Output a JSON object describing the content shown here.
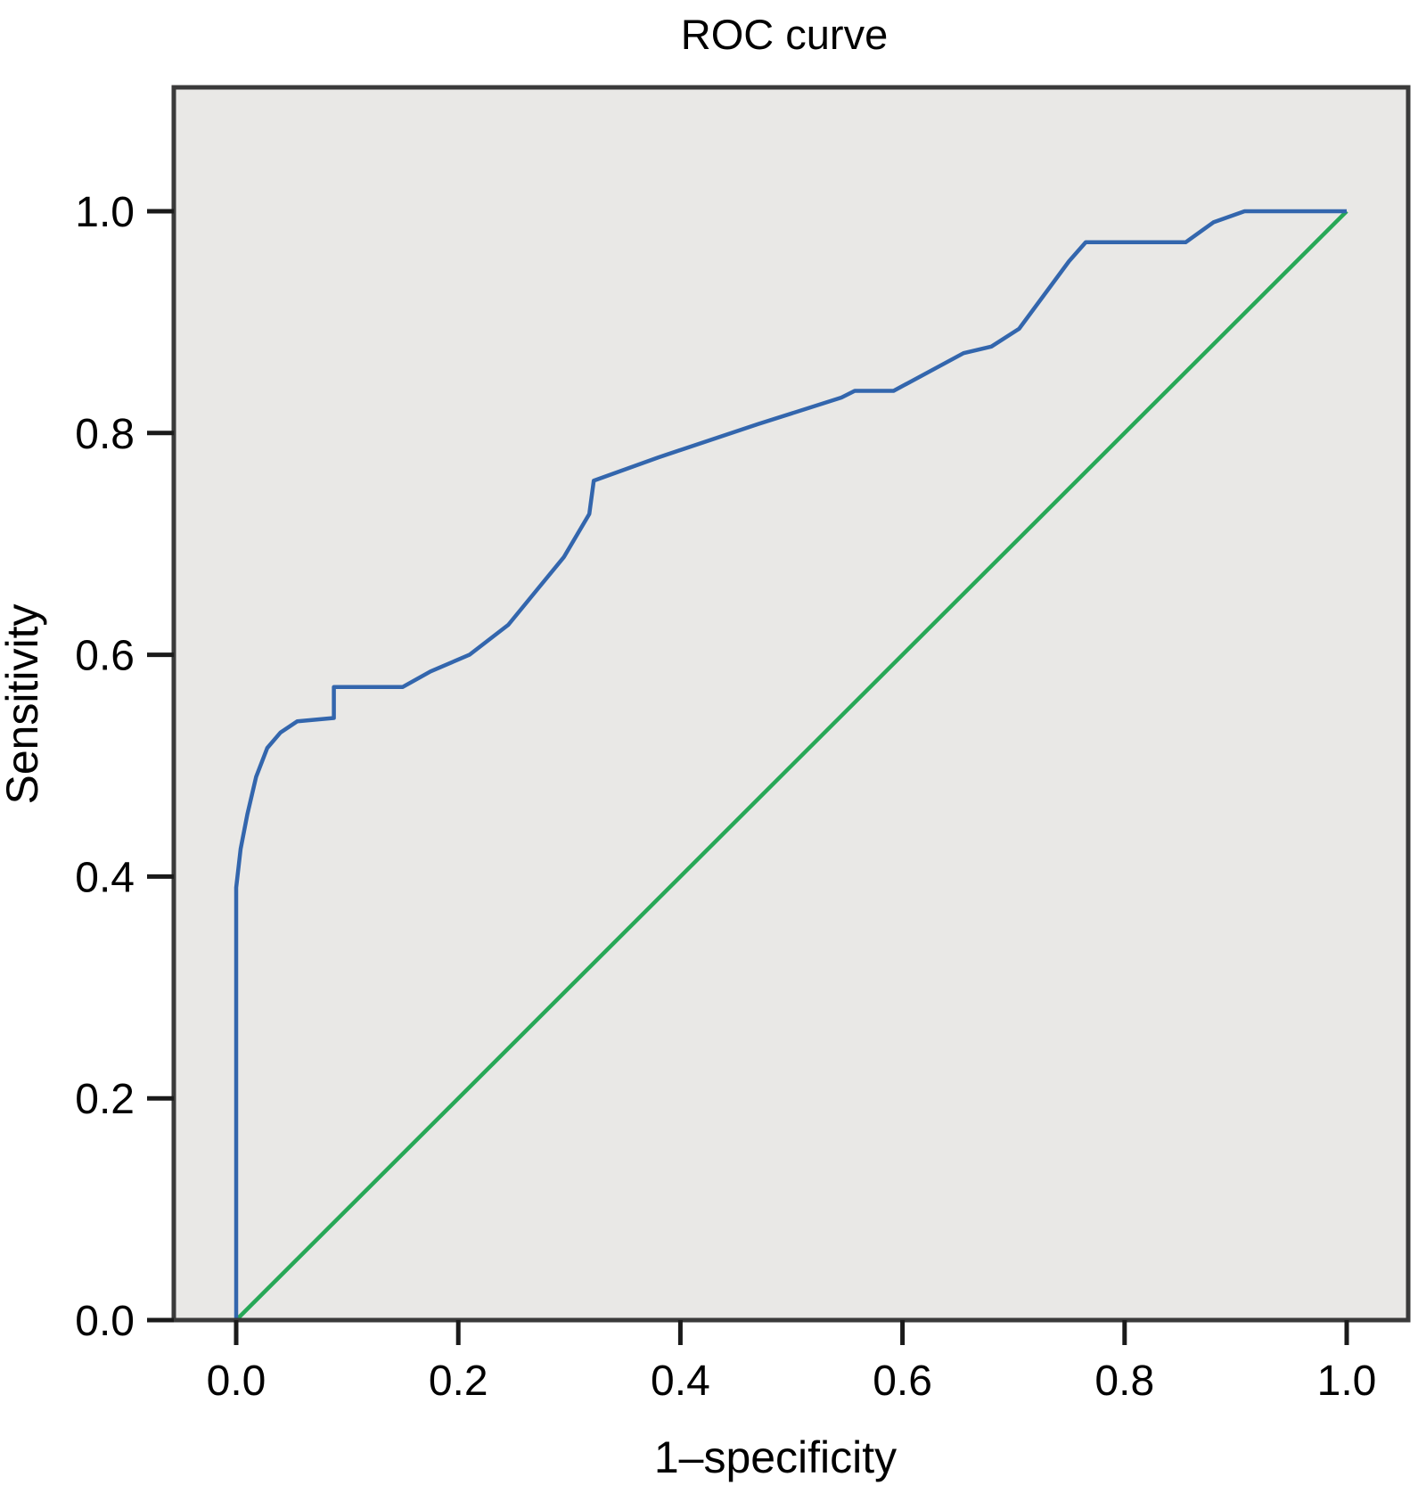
{
  "chart_data": {
    "type": "line",
    "title": "ROC curve",
    "xlabel": "1–specificity",
    "ylabel": "Sensitivity",
    "xlim": [
      0.0,
      1.0
    ],
    "ylim": [
      0.0,
      1.0
    ],
    "x_ticks": [
      "0.0",
      "0.2",
      "0.4",
      "0.6",
      "0.8",
      "1.0"
    ],
    "y_ticks": [
      "0.0",
      "0.2",
      "0.4",
      "0.6",
      "0.8",
      "1.0"
    ],
    "grid": false,
    "legend": "none",
    "plot_background": "#e9e8e6",
    "frame_color": "#3a3a3a",
    "tick_color": "#1a1a1a",
    "series": [
      {
        "name": "ROC curve",
        "color": "#3366ad",
        "line_width": 4.5,
        "points": [
          [
            0.0,
            0.0
          ],
          [
            0.0,
            0.39
          ],
          [
            0.004,
            0.425
          ],
          [
            0.01,
            0.456
          ],
          [
            0.018,
            0.49
          ],
          [
            0.028,
            0.516
          ],
          [
            0.04,
            0.53
          ],
          [
            0.055,
            0.54
          ],
          [
            0.088,
            0.543
          ],
          [
            0.088,
            0.571
          ],
          [
            0.15,
            0.571
          ],
          [
            0.175,
            0.585
          ],
          [
            0.21,
            0.6
          ],
          [
            0.245,
            0.627
          ],
          [
            0.272,
            0.66
          ],
          [
            0.295,
            0.688
          ],
          [
            0.318,
            0.727
          ],
          [
            0.322,
            0.757
          ],
          [
            0.38,
            0.778
          ],
          [
            0.47,
            0.808
          ],
          [
            0.545,
            0.832
          ],
          [
            0.557,
            0.838
          ],
          [
            0.592,
            0.838
          ],
          [
            0.655,
            0.872
          ],
          [
            0.68,
            0.878
          ],
          [
            0.705,
            0.894
          ],
          [
            0.75,
            0.955
          ],
          [
            0.765,
            0.972
          ],
          [
            0.855,
            0.972
          ],
          [
            0.88,
            0.99
          ],
          [
            0.908,
            1.0
          ],
          [
            1.0,
            1.0
          ]
        ]
      },
      {
        "name": "Reference line",
        "color": "#27a857",
        "line_width": 4.5,
        "points": [
          [
            0.0,
            0.0
          ],
          [
            1.0,
            1.0
          ]
        ]
      }
    ]
  }
}
